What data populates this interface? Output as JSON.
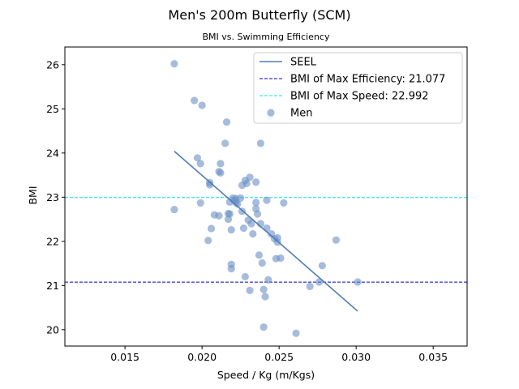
{
  "chart_data": {
    "type": "scatter",
    "title": "Men's 200m Butterfly (SCM)",
    "subtitle": "BMI vs. Swimming Efficiency",
    "xlabel": "Speed / Kg (m/Kgs)",
    "ylabel": "BMI",
    "xlim": [
      0.0111,
      0.0372
    ],
    "ylim": [
      19.63,
      26.4
    ],
    "xticks": [
      0.015,
      0.02,
      0.025,
      0.03,
      0.035
    ],
    "xtick_labels": [
      "0.015",
      "0.020",
      "0.025",
      "0.030",
      "0.035"
    ],
    "yticks": [
      20,
      21,
      22,
      23,
      24,
      25,
      26
    ],
    "ytick_labels": [
      "20",
      "21",
      "22",
      "23",
      "24",
      "25",
      "26"
    ],
    "grid": false,
    "legend_position": "top-right",
    "colors": {
      "points": "#6a8fc4",
      "seel_line": "#4f7db8",
      "max_efficiency_line": "#0000cc",
      "max_speed_line": "#00e5ee"
    },
    "series": [
      {
        "name": "SEEL",
        "kind": "line",
        "x": [
          0.0182,
          0.0301
        ],
        "y": [
          24.04,
          20.42
        ]
      },
      {
        "name": "BMI of Max Efficiency: 21.077",
        "kind": "hline",
        "y": 21.077
      },
      {
        "name": "BMI of Max Speed: 22.992",
        "kind": "hline",
        "y": 22.992
      },
      {
        "name": "Men",
        "kind": "scatter",
        "points": [
          [
            0.0182,
            26.02
          ],
          [
            0.0182,
            22.72
          ],
          [
            0.0195,
            25.19
          ],
          [
            0.0197,
            23.89
          ],
          [
            0.0199,
            23.76
          ],
          [
            0.0199,
            22.87
          ],
          [
            0.02,
            25.08
          ],
          [
            0.0204,
            22.02
          ],
          [
            0.0205,
            23.33
          ],
          [
            0.0205,
            23.28
          ],
          [
            0.0206,
            22.29
          ],
          [
            0.0208,
            22.6
          ],
          [
            0.0211,
            22.58
          ],
          [
            0.0211,
            23.58
          ],
          [
            0.0212,
            23.76
          ],
          [
            0.0212,
            23.55
          ],
          [
            0.0215,
            24.22
          ],
          [
            0.0216,
            24.7
          ],
          [
            0.0217,
            22.63
          ],
          [
            0.0217,
            22.5
          ],
          [
            0.0218,
            22.89
          ],
          [
            0.0218,
            22.62
          ],
          [
            0.0219,
            22.26
          ],
          [
            0.0219,
            21.48
          ],
          [
            0.0219,
            21.38
          ],
          [
            0.022,
            22.98
          ],
          [
            0.0221,
            22.92
          ],
          [
            0.0222,
            22.97
          ],
          [
            0.0222,
            22.88
          ],
          [
            0.0223,
            22.85
          ],
          [
            0.0225,
            22.98
          ],
          [
            0.0226,
            22.68
          ],
          [
            0.0226,
            23.27
          ],
          [
            0.0227,
            22.3
          ],
          [
            0.0228,
            23.38
          ],
          [
            0.0228,
            21.2
          ],
          [
            0.0229,
            23.31
          ],
          [
            0.023,
            22.48
          ],
          [
            0.0231,
            23.45
          ],
          [
            0.0231,
            20.89
          ],
          [
            0.0232,
            22.4
          ],
          [
            0.0233,
            22.17
          ],
          [
            0.0235,
            23.34
          ],
          [
            0.0235,
            22.88
          ],
          [
            0.0235,
            22.74
          ],
          [
            0.0236,
            22.62
          ],
          [
            0.0237,
            21.69
          ],
          [
            0.0238,
            24.22
          ],
          [
            0.0238,
            22.4
          ],
          [
            0.0239,
            21.51
          ],
          [
            0.024,
            20.06
          ],
          [
            0.024,
            20.91
          ],
          [
            0.0241,
            20.75
          ],
          [
            0.0242,
            22.93
          ],
          [
            0.0242,
            22.3
          ],
          [
            0.0243,
            21.13
          ],
          [
            0.0244,
            24.84
          ],
          [
            0.0245,
            22.17
          ],
          [
            0.0247,
            22.06
          ],
          [
            0.0248,
            21.61
          ],
          [
            0.0249,
            22.08
          ],
          [
            0.0249,
            21.98
          ],
          [
            0.0251,
            21.62
          ],
          [
            0.0253,
            22.87
          ],
          [
            0.0261,
            19.92
          ],
          [
            0.027,
            20.98
          ],
          [
            0.0276,
            21.08
          ],
          [
            0.0278,
            21.45
          ],
          [
            0.0287,
            22.03
          ],
          [
            0.0301,
            21.08
          ]
        ]
      }
    ]
  }
}
